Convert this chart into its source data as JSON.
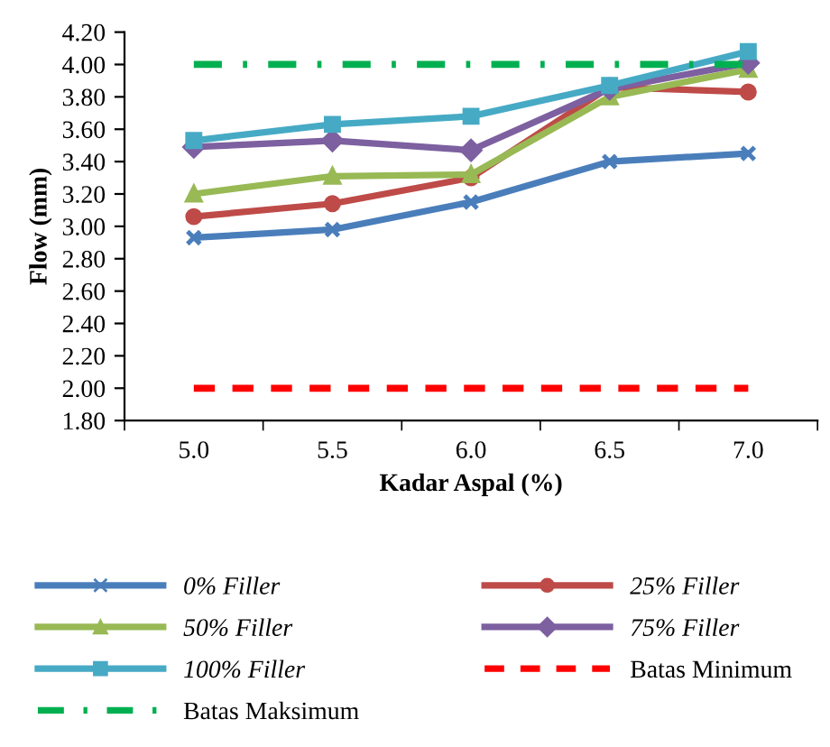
{
  "chart_data": {
    "type": "line",
    "xlabel": "Kadar Aspal (%)",
    "ylabel": "Flow (mm)",
    "categories": [
      "5.0",
      "5.5",
      "6.0",
      "6.5",
      "7.0"
    ],
    "ylim": [
      1.8,
      4.2
    ],
    "yticks": [
      {
        "value": 1.8,
        "label": "1.80"
      },
      {
        "value": 2.0,
        "label": "2.00"
      },
      {
        "value": 2.2,
        "label": "2.20"
      },
      {
        "value": 2.4,
        "label": "2.40"
      },
      {
        "value": 2.6,
        "label": "2.60"
      },
      {
        "value": 2.8,
        "label": "2.80"
      },
      {
        "value": 3.0,
        "label": "3.00"
      },
      {
        "value": 3.2,
        "label": "3.20"
      },
      {
        "value": 3.4,
        "label": "3.40"
      },
      {
        "value": 3.6,
        "label": "3.60"
      },
      {
        "value": 3.8,
        "label": "3.80"
      },
      {
        "value": 4.0,
        "label": "4.00"
      },
      {
        "value": 4.2,
        "label": "4.20"
      }
    ],
    "grid": false,
    "legend": "bottom",
    "series": [
      {
        "name": "0% Filler",
        "color": "#4a7ebb",
        "marker": "cross",
        "line_style": "solid",
        "values": [
          2.93,
          2.98,
          3.15,
          3.4,
          3.45
        ]
      },
      {
        "name": "25% Filler",
        "color": "#be4b48",
        "marker": "circle",
        "line_style": "solid",
        "values": [
          3.06,
          3.14,
          3.3,
          3.86,
          3.83
        ]
      },
      {
        "name": "50% Filler",
        "color": "#98b954",
        "marker": "triangle",
        "line_style": "solid",
        "values": [
          3.2,
          3.31,
          3.32,
          3.8,
          3.97
        ]
      },
      {
        "name": "75% Filler",
        "color": "#7d60a0",
        "marker": "diamond",
        "line_style": "solid",
        "values": [
          3.49,
          3.53,
          3.47,
          3.85,
          4.01
        ]
      },
      {
        "name": "100% Filler",
        "color": "#46aac5",
        "marker": "square",
        "line_style": "solid",
        "values": [
          3.53,
          3.63,
          3.68,
          3.87,
          4.08
        ]
      },
      {
        "name": "Batas Minimum",
        "color": "#ff0000",
        "marker": "none",
        "line_style": "dashed",
        "values": [
          2.0,
          2.0,
          2.0,
          2.0,
          2.0
        ]
      },
      {
        "name": "Batas Maksimum",
        "color": "#00b050",
        "marker": "none",
        "line_style": "dashdot",
        "values": [
          4.0,
          4.0,
          4.0,
          4.0,
          4.0
        ]
      }
    ]
  }
}
